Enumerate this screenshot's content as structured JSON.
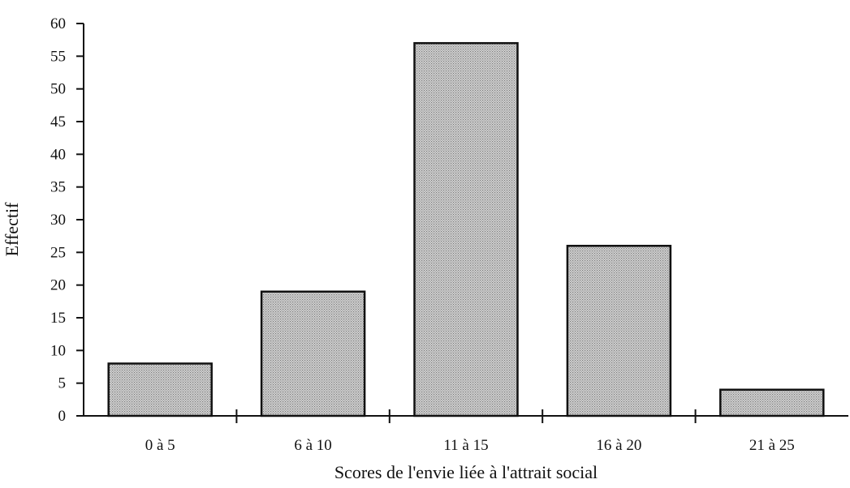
{
  "chart_data": {
    "type": "bar",
    "categories": [
      "0 à 5",
      "6 à 10",
      "11 à 15",
      "16 à 20",
      "21 à 25"
    ],
    "values": [
      8,
      19,
      57,
      26,
      4
    ],
    "xlabel": "Scores de l'envie liée à l'attrait social",
    "ylabel": "Effectif",
    "ylim": [
      0,
      60
    ],
    "yticks": [
      0,
      5,
      10,
      15,
      20,
      25,
      30,
      35,
      40,
      45,
      50,
      55,
      60
    ],
    "grid": false,
    "legend": "none",
    "colors": {
      "bar_fill": "#c4c4c4",
      "bar_stroke": "#111111",
      "axis": "#111111"
    }
  }
}
